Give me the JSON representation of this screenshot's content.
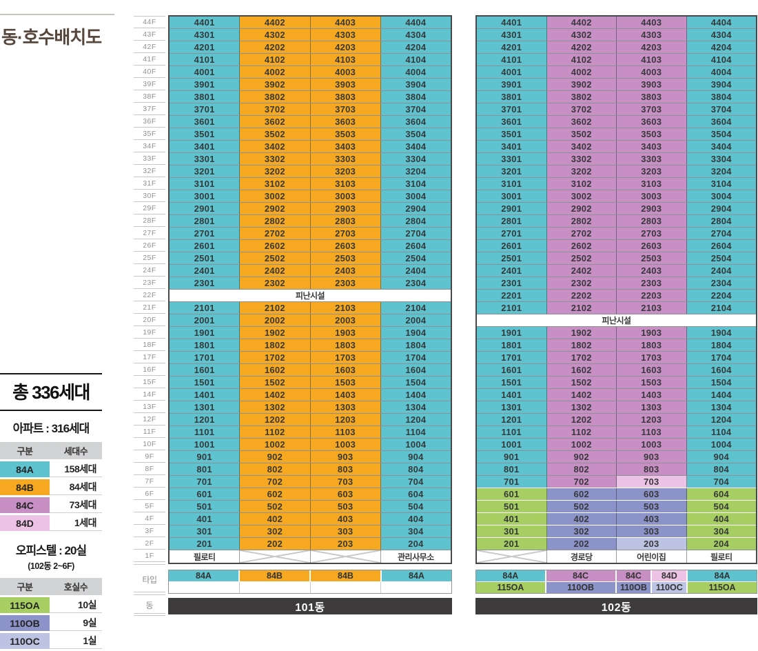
{
  "title": "동·호수배치도",
  "colors": {
    "t": "#5ec3ce",
    "o": "#f6a920",
    "p": "#c78fc4",
    "k": "#edc3e5",
    "g": "#a6ce62",
    "b": "#8b93c9",
    "l": "#bcc3e3",
    "w": "#ffffff",
    "dark_bar": "#3e3b3c",
    "header_gray": "#d2d3d5",
    "title_brown": "#56463c"
  },
  "axis": {
    "type_label": "타입",
    "dong_label": "동"
  },
  "floors": [
    "44F",
    "43F",
    "42F",
    "41F",
    "40F",
    "39F",
    "38F",
    "37F",
    "36F",
    "35F",
    "34F",
    "33F",
    "32F",
    "31F",
    "30F",
    "29F",
    "28F",
    "27F",
    "26F",
    "25F",
    "24F",
    "23F",
    "22F",
    "21F",
    "20F",
    "19F",
    "18F",
    "17F",
    "16F",
    "15F",
    "14F",
    "13F",
    "12F",
    "11F",
    "10F",
    "9F",
    "8F",
    "7F",
    "6F",
    "5F",
    "4F",
    "3F",
    "2F",
    "1F"
  ],
  "summary": {
    "total": "총 336세대",
    "apartment": {
      "subtitle": "아파트 : 316세대",
      "columns": [
        "구분",
        "세대수"
      ],
      "rows": [
        {
          "label": "84A",
          "value": "158세대",
          "c": "t"
        },
        {
          "label": "84B",
          "value": "84세대",
          "c": "o"
        },
        {
          "label": "84C",
          "value": "73세대",
          "c": "p"
        },
        {
          "label": "84D",
          "value": "1세대",
          "c": "k"
        }
      ]
    },
    "officetel": {
      "subtitle": "오피스텔 : 20실",
      "note": "(102동 2~6F)",
      "columns": [
        "구분",
        "호실수"
      ],
      "rows": [
        {
          "label": "115OA",
          "value": "10실",
          "c": "g"
        },
        {
          "label": "110OB",
          "value": "9실",
          "c": "b"
        },
        {
          "label": "110OC",
          "value": "1실",
          "c": "l"
        }
      ]
    }
  },
  "buildings": [
    {
      "name": "101동",
      "rows": [
        {
          "f": "44F",
          "u": [
            "4401",
            "4402",
            "4403",
            "4404"
          ],
          "c": "toot"
        },
        {
          "f": "43F",
          "u": [
            "4301",
            "4302",
            "4303",
            "4304"
          ],
          "c": "toot"
        },
        {
          "f": "42F",
          "u": [
            "4201",
            "4202",
            "4203",
            "4204"
          ],
          "c": "toot"
        },
        {
          "f": "41F",
          "u": [
            "4101",
            "4102",
            "4103",
            "4104"
          ],
          "c": "toot"
        },
        {
          "f": "40F",
          "u": [
            "4001",
            "4002",
            "4003",
            "4004"
          ],
          "c": "toot"
        },
        {
          "f": "39F",
          "u": [
            "3901",
            "3902",
            "3903",
            "3904"
          ],
          "c": "toot"
        },
        {
          "f": "38F",
          "u": [
            "3801",
            "3802",
            "3803",
            "3804"
          ],
          "c": "toot"
        },
        {
          "f": "37F",
          "u": [
            "3701",
            "3702",
            "3703",
            "3704"
          ],
          "c": "toot"
        },
        {
          "f": "36F",
          "u": [
            "3601",
            "3602",
            "3603",
            "3604"
          ],
          "c": "toot"
        },
        {
          "f": "35F",
          "u": [
            "3501",
            "3502",
            "3503",
            "3504"
          ],
          "c": "toot"
        },
        {
          "f": "34F",
          "u": [
            "3401",
            "3402",
            "3403",
            "3404"
          ],
          "c": "toot"
        },
        {
          "f": "33F",
          "u": [
            "3301",
            "3302",
            "3303",
            "3304"
          ],
          "c": "toot"
        },
        {
          "f": "32F",
          "u": [
            "3201",
            "3202",
            "3203",
            "3204"
          ],
          "c": "toot"
        },
        {
          "f": "31F",
          "u": [
            "3101",
            "3102",
            "3103",
            "3104"
          ],
          "c": "toot"
        },
        {
          "f": "30F",
          "u": [
            "3001",
            "3002",
            "3003",
            "3004"
          ],
          "c": "toot"
        },
        {
          "f": "29F",
          "u": [
            "2901",
            "2902",
            "2903",
            "2904"
          ],
          "c": "toot"
        },
        {
          "f": "28F",
          "u": [
            "2801",
            "2802",
            "2803",
            "2804"
          ],
          "c": "toot"
        },
        {
          "f": "27F",
          "u": [
            "2701",
            "2702",
            "2703",
            "2704"
          ],
          "c": "toot"
        },
        {
          "f": "26F",
          "u": [
            "2601",
            "2602",
            "2603",
            "2604"
          ],
          "c": "toot"
        },
        {
          "f": "25F",
          "u": [
            "2501",
            "2502",
            "2503",
            "2504"
          ],
          "c": "toot"
        },
        {
          "f": "24F",
          "u": [
            "2401",
            "2402",
            "2403",
            "2404"
          ],
          "c": "toot"
        },
        {
          "f": "23F",
          "u": [
            "2301",
            "2302",
            "2303",
            "2304"
          ],
          "c": "toot"
        },
        {
          "f": "22F",
          "span": "피난시설"
        },
        {
          "f": "21F",
          "u": [
            "2101",
            "2102",
            "2103",
            "2104"
          ],
          "c": "toot"
        },
        {
          "f": "20F",
          "u": [
            "2001",
            "2002",
            "2003",
            "2004"
          ],
          "c": "toot"
        },
        {
          "f": "19F",
          "u": [
            "1901",
            "1902",
            "1903",
            "1904"
          ],
          "c": "toot"
        },
        {
          "f": "18F",
          "u": [
            "1801",
            "1802",
            "1803",
            "1804"
          ],
          "c": "toot"
        },
        {
          "f": "17F",
          "u": [
            "1701",
            "1702",
            "1703",
            "1704"
          ],
          "c": "toot"
        },
        {
          "f": "16F",
          "u": [
            "1601",
            "1602",
            "1603",
            "1604"
          ],
          "c": "toot"
        },
        {
          "f": "15F",
          "u": [
            "1501",
            "1502",
            "1503",
            "1504"
          ],
          "c": "toot"
        },
        {
          "f": "14F",
          "u": [
            "1401",
            "1402",
            "1403",
            "1404"
          ],
          "c": "toot"
        },
        {
          "f": "13F",
          "u": [
            "1301",
            "1302",
            "1303",
            "1304"
          ],
          "c": "toot"
        },
        {
          "f": "12F",
          "u": [
            "1201",
            "1202",
            "1203",
            "1204"
          ],
          "c": "toot"
        },
        {
          "f": "11F",
          "u": [
            "1101",
            "1102",
            "1103",
            "1104"
          ],
          "c": "toot"
        },
        {
          "f": "10F",
          "u": [
            "1001",
            "1002",
            "1003",
            "1004"
          ],
          "c": "toot"
        },
        {
          "f": "9F",
          "u": [
            "901",
            "902",
            "903",
            "904"
          ],
          "c": "toot"
        },
        {
          "f": "8F",
          "u": [
            "801",
            "802",
            "803",
            "804"
          ],
          "c": "toot"
        },
        {
          "f": "7F",
          "u": [
            "701",
            "702",
            "703",
            "704"
          ],
          "c": "toot"
        },
        {
          "f": "6F",
          "u": [
            "601",
            "602",
            "603",
            "604"
          ],
          "c": "toot"
        },
        {
          "f": "5F",
          "u": [
            "501",
            "502",
            "503",
            "504"
          ],
          "c": "toot"
        },
        {
          "f": "4F",
          "u": [
            "401",
            "402",
            "403",
            "404"
          ],
          "c": "toot"
        },
        {
          "f": "3F",
          "u": [
            "301",
            "302",
            "303",
            "304"
          ],
          "c": "toot"
        },
        {
          "f": "2F",
          "u": [
            "201",
            "202",
            "203",
            "204"
          ],
          "c": "toot"
        },
        {
          "f": "1F",
          "u": [
            "필로티",
            "",
            "",
            "관리사무소"
          ],
          "c": "wxxw"
        }
      ],
      "type_rows": [
        [
          {
            "t": "84A",
            "c": "t",
            "w": 1
          },
          {
            "t": "84B",
            "c": "o",
            "w": 1
          },
          {
            "t": "84B",
            "c": "o",
            "w": 1
          },
          {
            "t": "84A",
            "c": "t",
            "w": 1
          }
        ],
        [
          {
            "t": "",
            "c": "w",
            "w": 1
          },
          {
            "t": "",
            "c": "w",
            "w": 1
          },
          {
            "t": "",
            "c": "w",
            "w": 1
          },
          {
            "t": "",
            "c": "w",
            "w": 1
          }
        ]
      ]
    },
    {
      "name": "102동",
      "rows": [
        {
          "f": "44F",
          "u": [
            "4401",
            "4402",
            "4403",
            "4404"
          ],
          "c": "tppt"
        },
        {
          "f": "43F",
          "u": [
            "4301",
            "4302",
            "4303",
            "4304"
          ],
          "c": "tppt"
        },
        {
          "f": "42F",
          "u": [
            "4201",
            "4202",
            "4203",
            "4204"
          ],
          "c": "tppt"
        },
        {
          "f": "41F",
          "u": [
            "4101",
            "4102",
            "4103",
            "4104"
          ],
          "c": "tppt"
        },
        {
          "f": "40F",
          "u": [
            "4001",
            "4002",
            "4003",
            "4004"
          ],
          "c": "tppt"
        },
        {
          "f": "39F",
          "u": [
            "3901",
            "3902",
            "3903",
            "3904"
          ],
          "c": "tppt"
        },
        {
          "f": "38F",
          "u": [
            "3801",
            "3802",
            "3803",
            "3804"
          ],
          "c": "tppt"
        },
        {
          "f": "37F",
          "u": [
            "3701",
            "3702",
            "3703",
            "3704"
          ],
          "c": "tppt"
        },
        {
          "f": "36F",
          "u": [
            "3601",
            "3602",
            "3603",
            "3604"
          ],
          "c": "tppt"
        },
        {
          "f": "35F",
          "u": [
            "3501",
            "3502",
            "3503",
            "3504"
          ],
          "c": "tppt"
        },
        {
          "f": "34F",
          "u": [
            "3401",
            "3402",
            "3403",
            "3404"
          ],
          "c": "tppt"
        },
        {
          "f": "33F",
          "u": [
            "3301",
            "3302",
            "3303",
            "3304"
          ],
          "c": "tppt"
        },
        {
          "f": "32F",
          "u": [
            "3201",
            "3202",
            "3203",
            "3204"
          ],
          "c": "tppt"
        },
        {
          "f": "31F",
          "u": [
            "3101",
            "3102",
            "3103",
            "3104"
          ],
          "c": "tppt"
        },
        {
          "f": "30F",
          "u": [
            "3001",
            "3002",
            "3003",
            "3004"
          ],
          "c": "tppt"
        },
        {
          "f": "29F",
          "u": [
            "2901",
            "2902",
            "2903",
            "2904"
          ],
          "c": "tppt"
        },
        {
          "f": "28F",
          "u": [
            "2801",
            "2802",
            "2803",
            "2804"
          ],
          "c": "tppt"
        },
        {
          "f": "27F",
          "u": [
            "2701",
            "2702",
            "2703",
            "2704"
          ],
          "c": "tppt"
        },
        {
          "f": "26F",
          "u": [
            "2601",
            "2602",
            "2603",
            "2604"
          ],
          "c": "tppt"
        },
        {
          "f": "25F",
          "u": [
            "2501",
            "2502",
            "2503",
            "2504"
          ],
          "c": "tppt"
        },
        {
          "f": "24F",
          "u": [
            "2401",
            "2402",
            "2403",
            "2404"
          ],
          "c": "tppt"
        },
        {
          "f": "23F",
          "u": [
            "2301",
            "2302",
            "2303",
            "2304"
          ],
          "c": "tppt"
        },
        {
          "f": "22F",
          "u": [
            "2201",
            "2202",
            "2203",
            "2204"
          ],
          "c": "tppt"
        },
        {
          "f": "21F",
          "u": [
            "2101",
            "2102",
            "2103",
            "2104"
          ],
          "c": "tppt"
        },
        {
          "f": "20F",
          "span": "피난시설"
        },
        {
          "f": "19F",
          "u": [
            "1901",
            "1902",
            "1903",
            "1904"
          ],
          "c": "tppt"
        },
        {
          "f": "18F",
          "u": [
            "1801",
            "1802",
            "1803",
            "1804"
          ],
          "c": "tppt"
        },
        {
          "f": "17F",
          "u": [
            "1701",
            "1702",
            "1703",
            "1704"
          ],
          "c": "tppt"
        },
        {
          "f": "16F",
          "u": [
            "1601",
            "1602",
            "1603",
            "1604"
          ],
          "c": "tppt"
        },
        {
          "f": "15F",
          "u": [
            "1501",
            "1502",
            "1503",
            "1504"
          ],
          "c": "tppt"
        },
        {
          "f": "14F",
          "u": [
            "1401",
            "1402",
            "1403",
            "1404"
          ],
          "c": "tppt"
        },
        {
          "f": "13F",
          "u": [
            "1301",
            "1302",
            "1303",
            "1304"
          ],
          "c": "tppt"
        },
        {
          "f": "12F",
          "u": [
            "1201",
            "1202",
            "1203",
            "1204"
          ],
          "c": "tppt"
        },
        {
          "f": "11F",
          "u": [
            "1101",
            "1102",
            "1103",
            "1104"
          ],
          "c": "tppt"
        },
        {
          "f": "10F",
          "u": [
            "1001",
            "1002",
            "1003",
            "1004"
          ],
          "c": "tppt"
        },
        {
          "f": "9F",
          "u": [
            "901",
            "902",
            "903",
            "904"
          ],
          "c": "tppt"
        },
        {
          "f": "8F",
          "u": [
            "801",
            "802",
            "803",
            "804"
          ],
          "c": "tppt"
        },
        {
          "f": "7F",
          "u": [
            "701",
            "702",
            "703",
            "704"
          ],
          "c": "tpkt"
        },
        {
          "f": "6F",
          "u": [
            "601",
            "602",
            "603",
            "604"
          ],
          "c": "gbbg"
        },
        {
          "f": "5F",
          "u": [
            "501",
            "502",
            "503",
            "504"
          ],
          "c": "gbbg"
        },
        {
          "f": "4F",
          "u": [
            "401",
            "402",
            "403",
            "404"
          ],
          "c": "gbbg"
        },
        {
          "f": "3F",
          "u": [
            "301",
            "302",
            "303",
            "304"
          ],
          "c": "gbbg"
        },
        {
          "f": "2F",
          "u": [
            "201",
            "202",
            "203",
            "204"
          ],
          "c": "gblg"
        },
        {
          "f": "1F",
          "u": [
            "",
            "경로당",
            "어린이집",
            "필로티"
          ],
          "c": "xwww"
        }
      ],
      "type_rows": [
        [
          {
            "t": "84A",
            "c": "t",
            "w": 1
          },
          {
            "t": "84C",
            "c": "p",
            "w": 1
          },
          {
            "t": "84C",
            "c": "p",
            "w": 0.5
          },
          {
            "t": "84D",
            "c": "k",
            "w": 0.5
          },
          {
            "t": "84A",
            "c": "t",
            "w": 1
          }
        ],
        [
          {
            "t": "115OA",
            "c": "g",
            "w": 1
          },
          {
            "t": "110OB",
            "c": "b",
            "w": 1
          },
          {
            "t": "110OB",
            "c": "b",
            "w": 0.5
          },
          {
            "t": "110OC",
            "c": "l",
            "w": 0.5
          },
          {
            "t": "115OA",
            "c": "g",
            "w": 1
          }
        ]
      ]
    }
  ]
}
